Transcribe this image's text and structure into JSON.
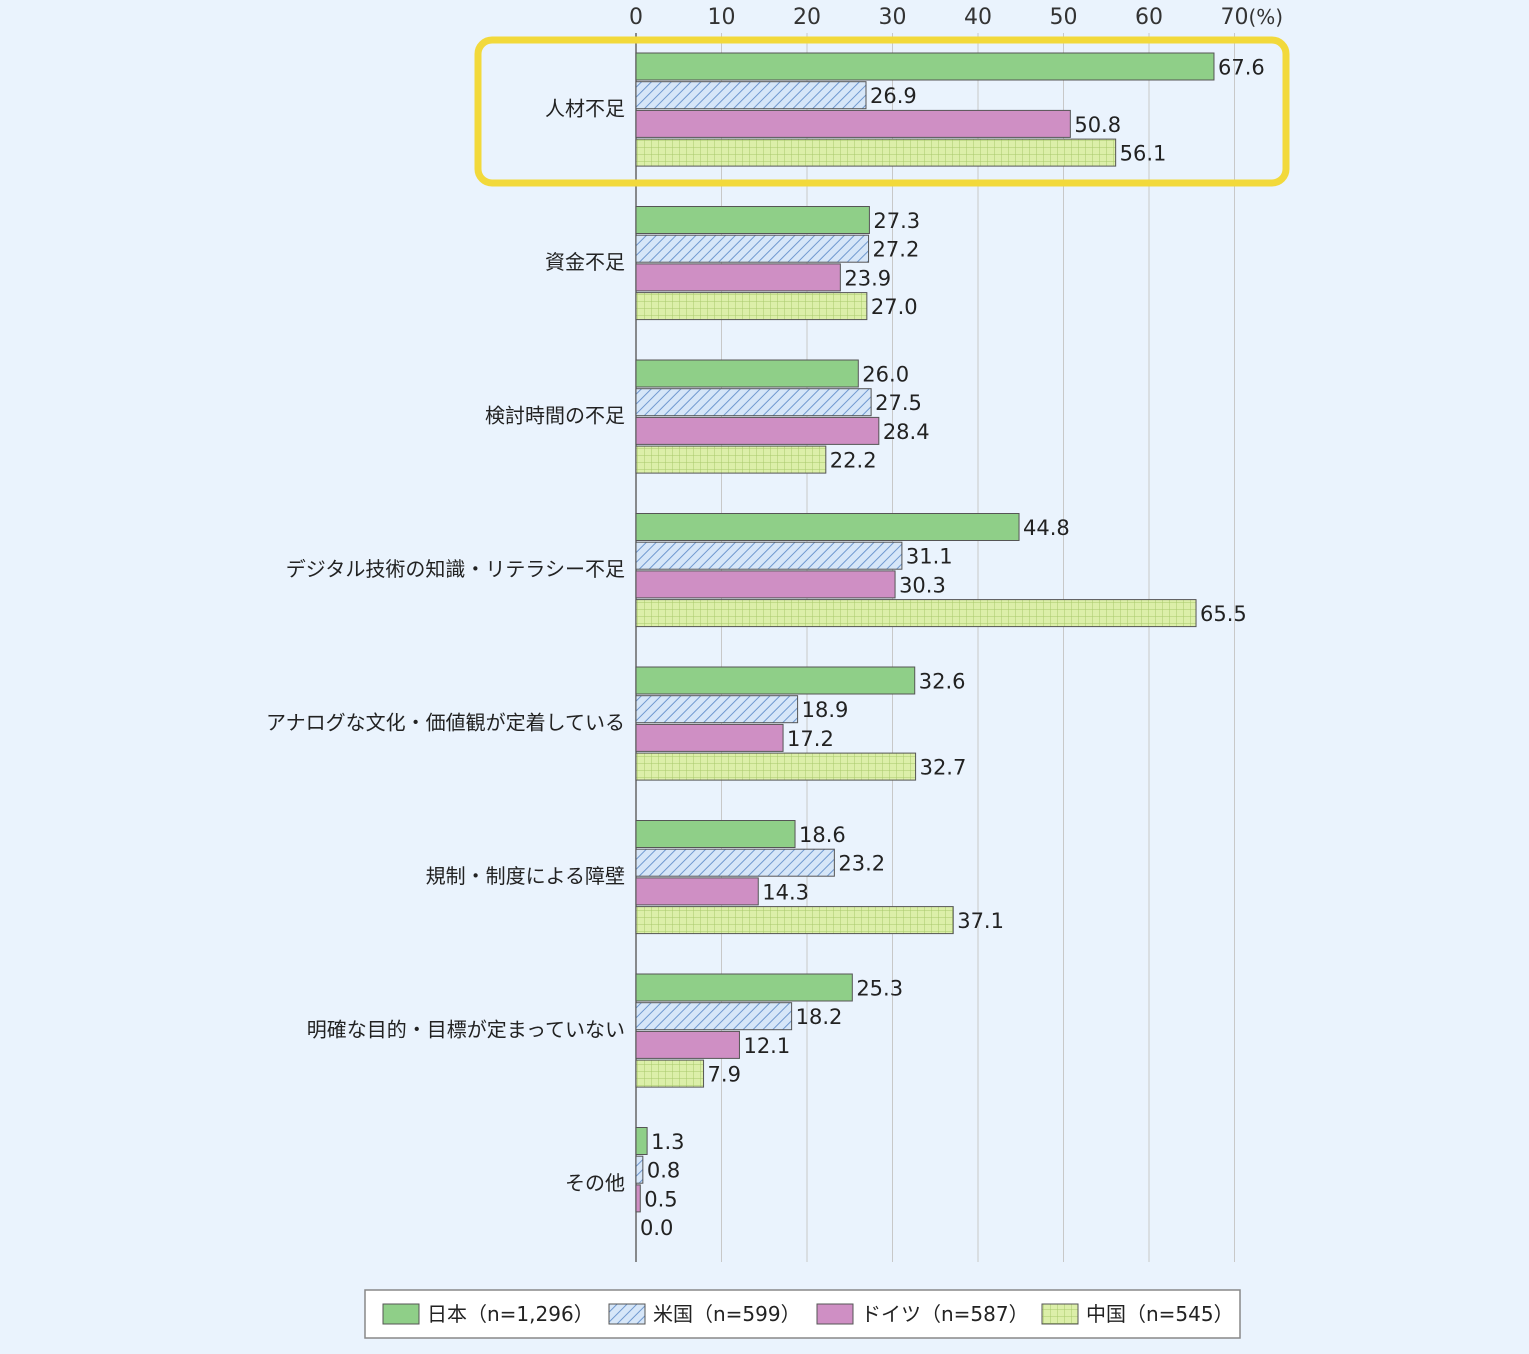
{
  "chart_data": {
    "type": "bar",
    "orientation": "horizontal",
    "unit_label": "(%)",
    "xlim": [
      0,
      70
    ],
    "xticks": [
      "0",
      "10",
      "20",
      "30",
      "40",
      "50",
      "60",
      "70"
    ],
    "grid": true,
    "categories": [
      "人材不足",
      "資金不足",
      "検討時間の不足",
      "デジタル技術の知識・リテラシー不足",
      "アナログな文化・価値観が定着している",
      "規制・制度による障壁",
      "明確な目的・目標が定まっていない",
      "その他"
    ],
    "series": [
      {
        "name": "日本（n=1,296）",
        "color": "#8fcf88",
        "pattern": "solid",
        "values": [
          67.6,
          27.3,
          26.0,
          44.8,
          32.6,
          18.6,
          25.3,
          1.3
        ],
        "labels": [
          "67.6",
          "27.3",
          "26.0",
          "44.8",
          "32.6",
          "18.6",
          "25.3",
          "1.3"
        ]
      },
      {
        "name": "米国（n=599）",
        "color": "#b5d4f1",
        "pattern": "diagonal",
        "values": [
          26.9,
          27.2,
          27.5,
          31.1,
          18.9,
          23.2,
          18.2,
          0.8
        ],
        "labels": [
          "26.9",
          "27.2",
          "27.5",
          "31.1",
          "18.9",
          "23.2",
          "18.2",
          "0.8"
        ]
      },
      {
        "name": "ドイツ（n=587）",
        "color": "#cf8fc4",
        "pattern": "solid",
        "values": [
          50.8,
          23.9,
          28.4,
          30.3,
          17.2,
          14.3,
          12.1,
          0.5
        ],
        "labels": [
          "50.8",
          "23.9",
          "28.4",
          "30.3",
          "17.2",
          "14.3",
          "12.1",
          "0.5"
        ]
      },
      {
        "name": "中国（n=545）",
        "color": "#d3ea9c",
        "pattern": "grid",
        "values": [
          56.1,
          27.0,
          22.2,
          65.5,
          32.7,
          37.1,
          7.9,
          0.0
        ],
        "labels": [
          "56.1",
          "27.0",
          "22.2",
          "65.5",
          "32.7",
          "37.1",
          "7.9",
          "0.0"
        ]
      }
    ],
    "legend_position": "bottom",
    "highlight": {
      "category_index": 0,
      "color": "#f2d93b"
    }
  }
}
